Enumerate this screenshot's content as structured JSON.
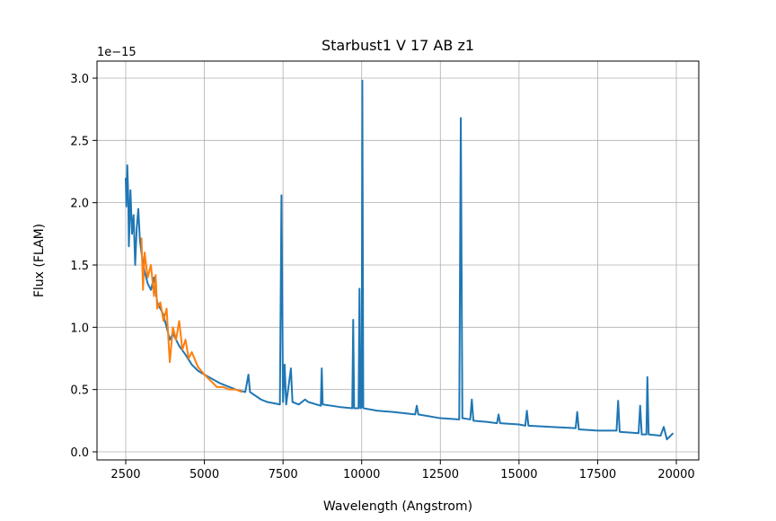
{
  "chart_data": {
    "type": "line",
    "title": "Starbust1 V 17 AB z1",
    "x_label": "Wavelength (Angstrom)",
    "y_label": "Flux (FLAM)",
    "y_offset_label": "1e−15",
    "xlim": [
      1587,
      20713
    ],
    "ylim": [
      -0.065,
      3.137
    ],
    "xticks": [
      2500,
      5000,
      7500,
      10000,
      12500,
      15000,
      17500,
      20000
    ],
    "yticks": [
      {
        "value": 0,
        "label": "0.0"
      },
      0.5,
      {
        "value": 1,
        "label": "1.0"
      },
      1.5,
      {
        "value": 2,
        "label": "2.0"
      },
      2.5,
      {
        "value": 3,
        "label": "3.0"
      }
    ],
    "grid": true,
    "series": [
      {
        "color": "#1f77b4",
        "x": [
          2500,
          2520,
          2550,
          2580,
          2600,
          2650,
          2700,
          2750,
          2800,
          2850,
          2900,
          2950,
          3000,
          3100,
          3200,
          3300,
          3400,
          3500,
          3600,
          3700,
          3800,
          3900,
          4000,
          4200,
          4400,
          4600,
          4800,
          5000,
          5500,
          6000,
          6300,
          6400,
          6450,
          6800,
          7000,
          7400,
          7450,
          7500,
          7550,
          7600,
          7750,
          7800,
          8000,
          8200,
          8300,
          8700,
          8730,
          8760,
          9300,
          9700,
          9730,
          9760,
          9900,
          9930,
          9960,
          10000,
          10020,
          10050,
          10500,
          11000,
          11700,
          11750,
          11800,
          12500,
          13100,
          13150,
          13200,
          13450,
          13500,
          13550,
          14000,
          14300,
          14350,
          14400,
          15000,
          15200,
          15250,
          15300,
          16000,
          16800,
          16850,
          16900,
          17500,
          18100,
          18150,
          18200,
          18800,
          18850,
          18900,
          19050,
          19080,
          19120,
          19500,
          19600,
          19700,
          19900
        ],
        "values": [
          2.2,
          1.97,
          2.3,
          2.05,
          1.65,
          2.1,
          1.75,
          1.9,
          1.5,
          1.8,
          1.95,
          1.7,
          1.6,
          1.45,
          1.35,
          1.3,
          1.4,
          1.2,
          1.15,
          1.1,
          1.0,
          0.9,
          0.95,
          0.85,
          0.78,
          0.7,
          0.65,
          0.62,
          0.55,
          0.5,
          0.48,
          0.62,
          0.48,
          0.42,
          0.4,
          0.38,
          2.06,
          0.4,
          0.7,
          0.38,
          0.67,
          0.4,
          0.38,
          0.42,
          0.4,
          0.37,
          0.67,
          0.38,
          0.36,
          0.35,
          1.06,
          0.35,
          0.35,
          1.31,
          0.35,
          0.36,
          2.98,
          0.35,
          0.33,
          0.32,
          0.3,
          0.37,
          0.3,
          0.27,
          0.26,
          2.68,
          0.27,
          0.26,
          0.42,
          0.25,
          0.24,
          0.23,
          0.3,
          0.23,
          0.22,
          0.21,
          0.33,
          0.21,
          0.2,
          0.19,
          0.32,
          0.18,
          0.17,
          0.17,
          0.41,
          0.16,
          0.15,
          0.37,
          0.14,
          0.14,
          0.6,
          0.14,
          0.13,
          0.2,
          0.1,
          0.15
        ]
      },
      {
        "color": "#ff7f0e",
        "x": [
          3000,
          3050,
          3100,
          3200,
          3300,
          3400,
          3450,
          3500,
          3600,
          3700,
          3800,
          3900,
          4000,
          4100,
          4200,
          4300,
          4400,
          4500,
          4600,
          4800,
          5000,
          5200,
          5400,
          5600,
          5800,
          6000,
          6200
        ],
        "values": [
          1.72,
          1.3,
          1.6,
          1.4,
          1.5,
          1.25,
          1.42,
          1.15,
          1.2,
          1.05,
          1.15,
          0.72,
          1.0,
          0.9,
          1.05,
          0.82,
          0.9,
          0.75,
          0.8,
          0.68,
          0.62,
          0.57,
          0.52,
          0.52,
          0.5,
          0.5,
          0.48
        ]
      }
    ]
  }
}
